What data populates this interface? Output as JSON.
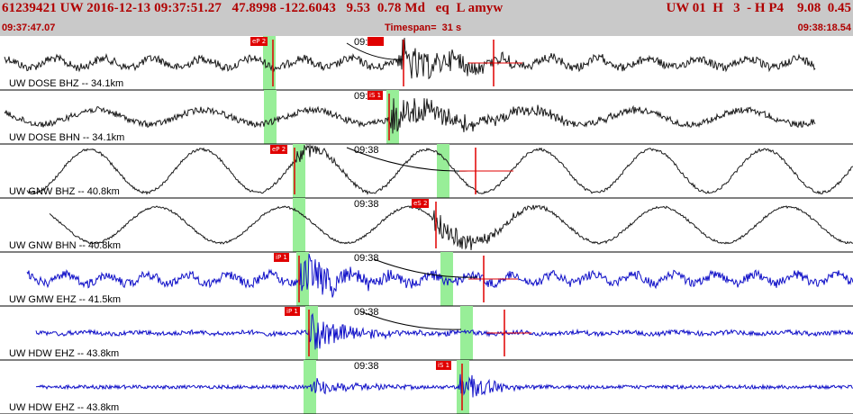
{
  "header": {
    "title": "61239421 UW 2016-12-13 09:37:51.27   47.8998 -122.6043   9.53  0.78 Md   eq  L amyw",
    "right": "UW 01  H   3  - H P4    9.08  0.45"
  },
  "time_bar": {
    "start": "09:37:47.07",
    "timespan": "Timespan=  31 s",
    "end": "09:38:18.54"
  },
  "colors": {
    "header_bg": "#c9c9c9",
    "header_text": "#b00000",
    "pick": "#e00000",
    "green_window": "#98ee98",
    "trace_black": "#1a1a1a",
    "trace_blue": "#1010c8",
    "separator": "#000000"
  },
  "panels": [
    {
      "label": "UW DOSE BHZ -- 34.1km",
      "trace_color": "black",
      "time_label": "09:38",
      "picks": [
        {
          "text": "eP 2"
        },
        {
          "text": ""
        }
      ],
      "green_windows": [
        [
          292,
          306
        ]
      ],
      "pick_lines": [
        303,
        448,
        548
      ],
      "signal": {
        "type": "bb",
        "noise": 4.5,
        "onset": 442,
        "peak": 24,
        "decay": 70,
        "lowfreq": 5,
        "lowper": 55,
        "start": 5,
        "end": 905
      },
      "red_tail": [
        520,
        580
      ],
      "curve": [
        [
          385,
          8
        ],
        [
          448,
          26
        ]
      ]
    },
    {
      "label": "UW DOSE BHN -- 34.1km",
      "trace_color": "black",
      "time_label": "09:38",
      "picks": [
        {
          "text": "iS 1"
        }
      ],
      "green_windows": [
        [
          293,
          307
        ],
        [
          429,
          443
        ]
      ],
      "pick_lines": [
        432
      ],
      "signal": {
        "type": "bb",
        "noise": 3.5,
        "onset": 432,
        "peak": 22,
        "decay": 90,
        "lowfreq": 8,
        "lowper": 120,
        "start": 5,
        "end": 905
      },
      "red_tail": [],
      "curve": []
    },
    {
      "label": "UW GNW BHZ -- 40.8km",
      "trace_color": "black",
      "time_label": "09:38",
      "picks": [
        {
          "text": "eP 2"
        }
      ],
      "green_windows": [
        [
          325,
          339
        ],
        [
          485,
          499
        ]
      ],
      "pick_lines": [
        327,
        528
      ],
      "signal": {
        "type": "lp",
        "noise": 1.5,
        "onset": 327,
        "peak": 10,
        "decay": 40,
        "lowfreq": 24,
        "lowper": 125,
        "start": 30,
        "end": 947
      },
      "red_tail": [
        510,
        570
      ],
      "curve": [
        [
          385,
          4
        ],
        [
          520,
          30
        ]
      ]
    },
    {
      "label": "UW GNW BHN -- 40.8km",
      "trace_color": "black",
      "time_label": "09:38",
      "picks": [
        {
          "text": "eS 2"
        }
      ],
      "green_windows": [
        [
          325,
          339
        ]
      ],
      "pick_lines": [
        484
      ],
      "signal": {
        "type": "lp",
        "noise": 1.2,
        "onset": 480,
        "peak": 16,
        "decay": 60,
        "lowfreq": 20,
        "lowper": 140,
        "start": 55,
        "end": 947
      },
      "red_tail": [],
      "curve": []
    },
    {
      "label": "UW GMW EHZ -- 41.5km",
      "trace_color": "blue",
      "time_label": "09:38",
      "picks": [
        {
          "text": "iP 1"
        }
      ],
      "green_windows": [
        [
          329,
          343
        ],
        [
          489,
          503
        ]
      ],
      "pick_lines": [
        332,
        537
      ],
      "signal": {
        "type": "bb",
        "noise": 5,
        "onset": 332,
        "peak": 26,
        "decay": 50,
        "lowfreq": 5,
        "lowper": 45,
        "start": 30,
        "end": 947
      },
      "red_tail": [
        520,
        575
      ],
      "curve": [
        [
          415,
          8
        ],
        [
          530,
          28
        ]
      ]
    },
    {
      "label": "UW HDW EHZ -- 43.8km",
      "trace_color": "blue",
      "time_label": "09:38",
      "picks": [
        {
          "text": "iP 1"
        }
      ],
      "green_windows": [
        [
          339,
          353
        ],
        [
          511,
          525
        ]
      ],
      "pick_lines": [
        343,
        560
      ],
      "signal": {
        "type": "bb",
        "noise": 2.5,
        "onset": 343,
        "peak": 22,
        "decay": 45,
        "lowfreq": 1,
        "lowper": 60,
        "start": 40,
        "end": 947
      },
      "red_tail": [
        540,
        590
      ],
      "curve": [
        [
          400,
          6
        ],
        [
          512,
          26
        ]
      ]
    },
    {
      "label": "UW HDW EHZ -- 43.8km",
      "trace_color": "blue",
      "time_label": "09:38",
      "picks": [
        {
          "text": "iS 1"
        }
      ],
      "green_windows": [
        [
          337,
          351
        ],
        [
          507,
          521
        ]
      ],
      "pick_lines": [
        513
      ],
      "signal": {
        "type": "bb",
        "noise": 2,
        "onset": 345,
        "peak": 12,
        "decay": 40,
        "lowfreq": 0,
        "lowper": 60,
        "start": 40,
        "end": 947,
        "second_onset": 510,
        "second_peak": 28
      },
      "red_tail": [],
      "curve": []
    }
  ]
}
